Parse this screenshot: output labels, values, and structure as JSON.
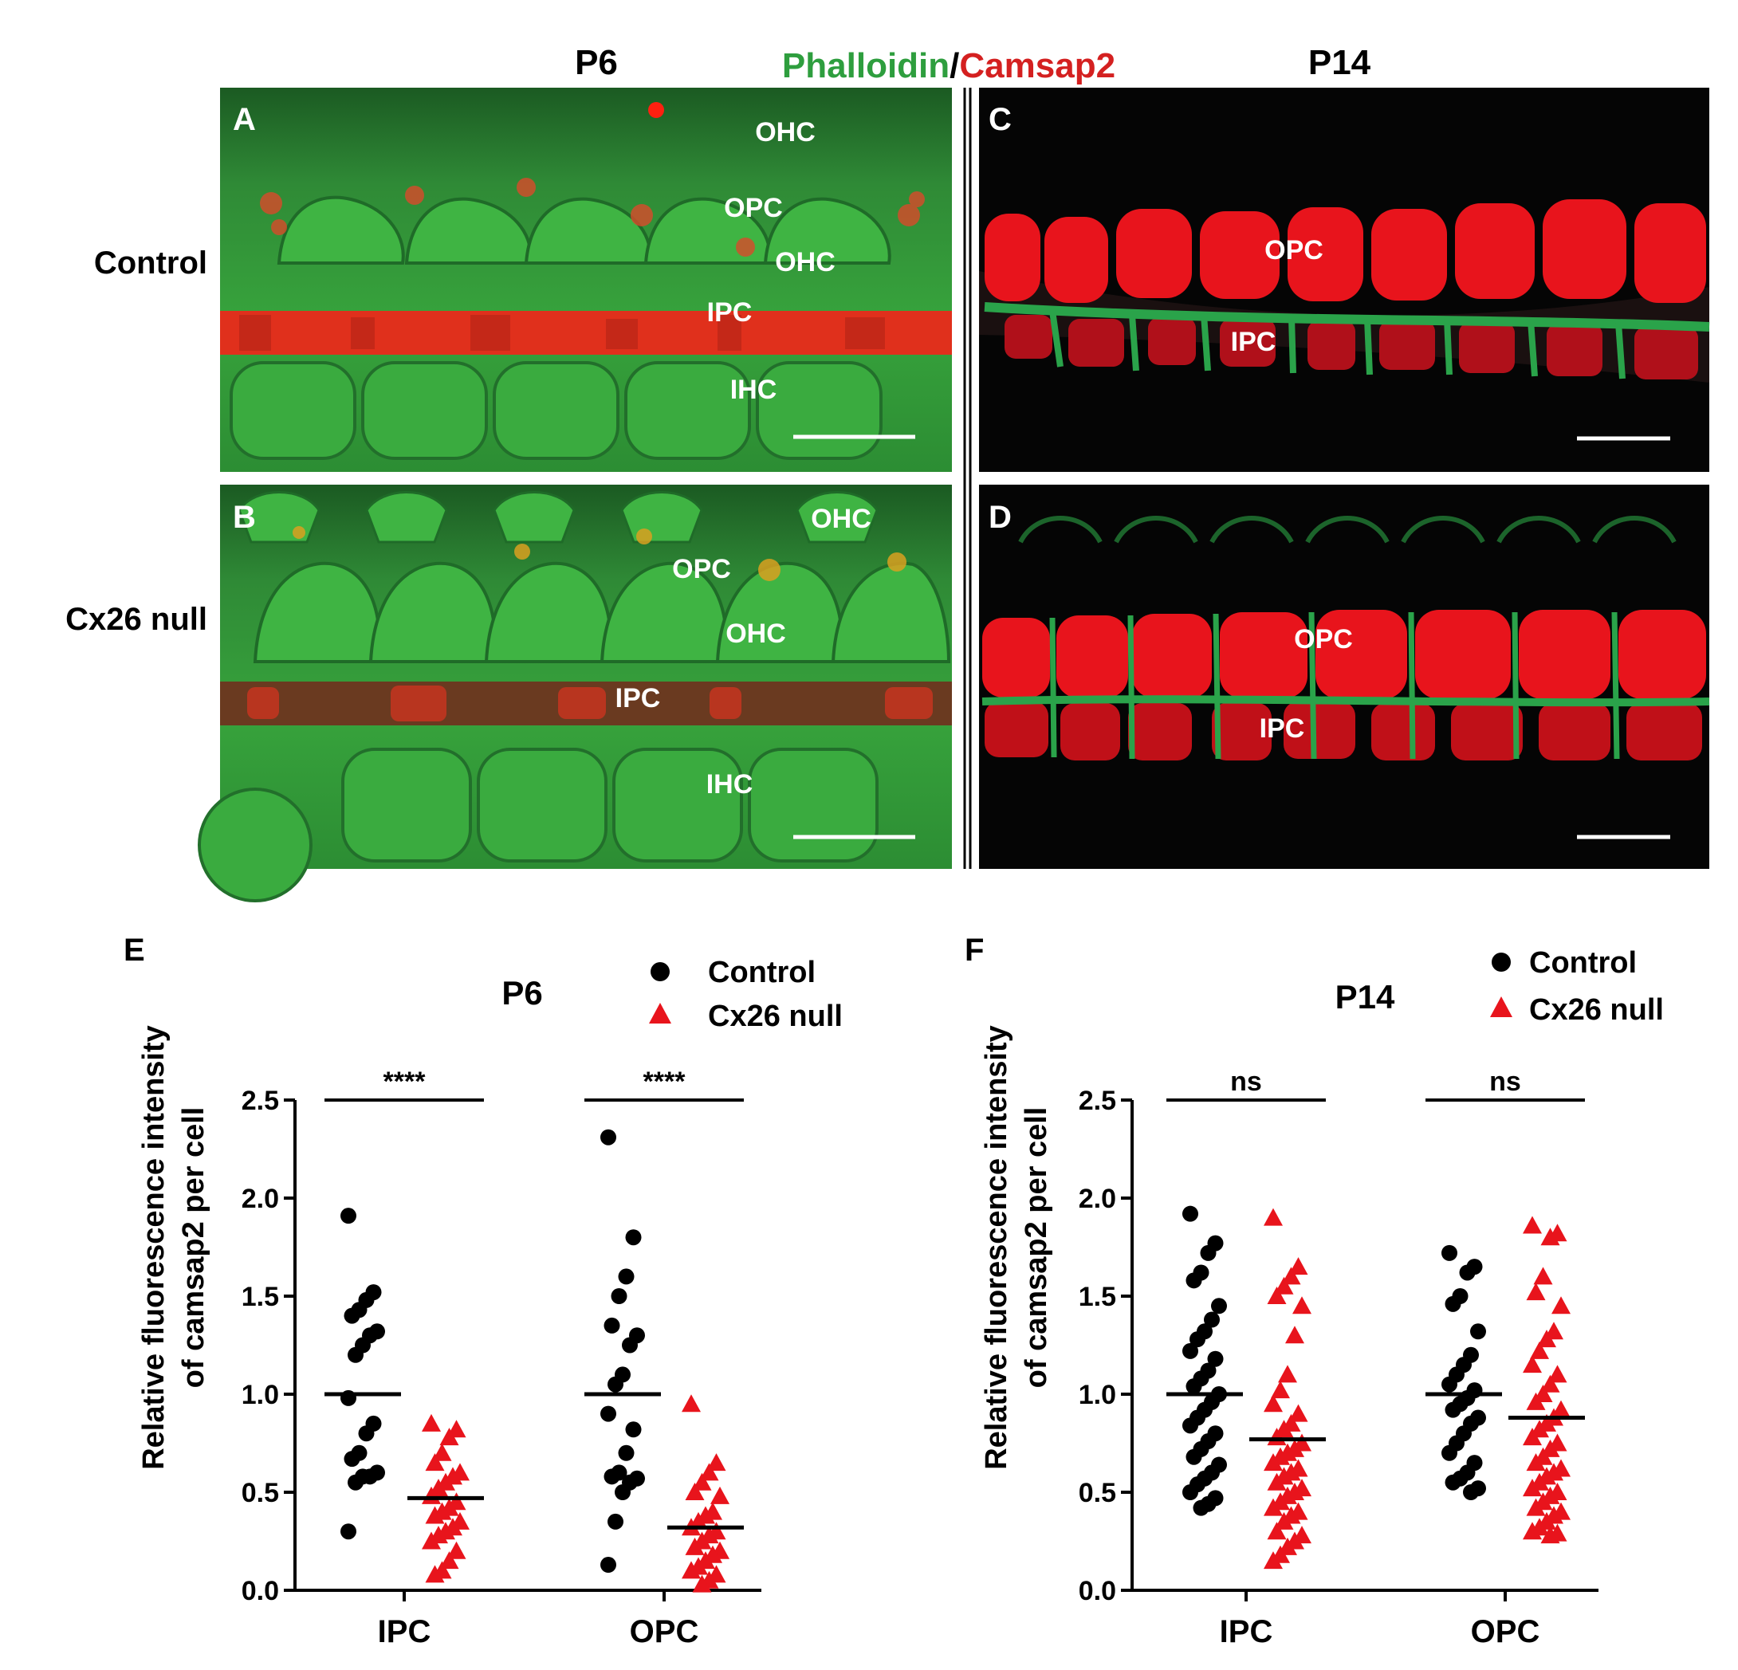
{
  "header": {
    "left_stage": "P6",
    "right_stage": "P14",
    "stain_a": "Phalloidin",
    "stain_sep": "/",
    "stain_b": "Camsap2",
    "stain_a_color": "#2e9e3e",
    "stain_b_color": "#d42020"
  },
  "rows": {
    "top": "Control",
    "bottom": "Cx26 null"
  },
  "micrographs": [
    {
      "letter": "A",
      "bg": "green",
      "labels": [
        "OHC",
        "OPC",
        "OHC",
        "IPC",
        "IHC"
      ]
    },
    {
      "letter": "B",
      "bg": "green",
      "labels": [
        "OHC",
        "OPC",
        "OHC",
        "IPC",
        "IHC"
      ]
    },
    {
      "letter": "C",
      "bg": "black",
      "labels": [
        "OPC",
        "IPC"
      ]
    },
    {
      "letter": "D",
      "bg": "black",
      "labels": [
        "OPC",
        "IPC"
      ]
    }
  ],
  "chart_data": [
    {
      "panel": "E",
      "type": "scatter",
      "title": "P6",
      "ylabel_line1": "Relative fluorescence intensity",
      "ylabel_line2": "of camsap2 per cell",
      "ylim": [
        0,
        2.5
      ],
      "yticks": [
        "0.0",
        "0.5",
        "1.0",
        "1.5",
        "2.0",
        "2.5"
      ],
      "categories": [
        "IPC",
        "OPC"
      ],
      "legend": [
        {
          "name": "Control",
          "marker": "circle",
          "color": "#000000"
        },
        {
          "name": "Cx26 null",
          "marker": "triangle",
          "color": "#e8141c"
        }
      ],
      "significance": [
        "****",
        "****"
      ],
      "series": [
        {
          "name": "Control",
          "means": [
            1.0,
            1.0
          ],
          "values": [
            [
              1.91,
              1.52,
              1.48,
              1.43,
              1.4,
              1.32,
              1.3,
              1.25,
              1.2,
              0.98,
              0.85,
              0.8,
              0.7,
              0.67,
              0.6,
              0.58,
              0.58,
              0.55,
              0.3
            ],
            [
              2.31,
              1.8,
              1.6,
              1.5,
              1.35,
              1.3,
              1.25,
              1.1,
              1.05,
              0.9,
              0.82,
              0.7,
              0.6,
              0.58,
              0.57,
              0.55,
              0.5,
              0.35,
              0.13
            ]
          ]
        },
        {
          "name": "Cx26 null",
          "means": [
            0.47,
            0.32
          ],
          "values": [
            [
              0.85,
              0.82,
              0.78,
              0.7,
              0.65,
              0.6,
              0.58,
              0.55,
              0.52,
              0.48,
              0.45,
              0.42,
              0.4,
              0.38,
              0.35,
              0.32,
              0.3,
              0.28,
              0.25,
              0.2,
              0.15,
              0.1,
              0.08
            ],
            [
              0.95,
              0.65,
              0.6,
              0.55,
              0.5,
              0.48,
              0.4,
              0.38,
              0.35,
              0.32,
              0.3,
              0.28,
              0.25,
              0.22,
              0.2,
              0.18,
              0.15,
              0.12,
              0.1,
              0.08,
              0.05,
              0.03
            ]
          ]
        }
      ]
    },
    {
      "panel": "F",
      "type": "scatter",
      "title": "P14",
      "ylabel_line1": "Relative fluorescence intensity",
      "ylabel_line2": "of camsap2 per cell",
      "ylim": [
        0,
        2.5
      ],
      "yticks": [
        "0.0",
        "0.5",
        "1.0",
        "1.5",
        "2.0",
        "2.5"
      ],
      "categories": [
        "IPC",
        "OPC"
      ],
      "legend": [
        {
          "name": "Control",
          "marker": "circle",
          "color": "#000000"
        },
        {
          "name": "Cx26 null",
          "marker": "triangle",
          "color": "#e8141c"
        }
      ],
      "significance": [
        "ns",
        "ns"
      ],
      "series": [
        {
          "name": "Control",
          "means": [
            1.0,
            1.0
          ],
          "values": [
            [
              1.92,
              1.77,
              1.72,
              1.62,
              1.58,
              1.45,
              1.38,
              1.32,
              1.28,
              1.22,
              1.18,
              1.12,
              1.08,
              1.04,
              1.0,
              0.96,
              0.92,
              0.88,
              0.84,
              0.8,
              0.76,
              0.72,
              0.68,
              0.64,
              0.6,
              0.57,
              0.54,
              0.5,
              0.47,
              0.44,
              0.42
            ],
            [
              1.72,
              1.65,
              1.62,
              1.5,
              1.46,
              1.32,
              1.2,
              1.15,
              1.1,
              1.05,
              1.02,
              0.98,
              0.95,
              0.92,
              0.88,
              0.85,
              0.8,
              0.75,
              0.7,
              0.65,
              0.6,
              0.57,
              0.55,
              0.52,
              0.5
            ]
          ]
        },
        {
          "name": "Cx26 null",
          "means": [
            0.77,
            0.88
          ],
          "values": [
            [
              1.9,
              1.65,
              1.6,
              1.55,
              1.5,
              1.45,
              1.3,
              1.1,
              1.02,
              0.95,
              0.9,
              0.85,
              0.82,
              0.78,
              0.75,
              0.72,
              0.7,
              0.68,
              0.65,
              0.62,
              0.6,
              0.58,
              0.55,
              0.52,
              0.5,
              0.48,
              0.45,
              0.42,
              0.4,
              0.38,
              0.35,
              0.3,
              0.28,
              0.25,
              0.22,
              0.18,
              0.15
            ],
            [
              1.86,
              1.82,
              1.8,
              1.6,
              1.52,
              1.45,
              1.32,
              1.28,
              1.22,
              1.15,
              1.1,
              1.05,
              1.0,
              0.96,
              0.92,
              0.88,
              0.85,
              0.82,
              0.78,
              0.75,
              0.72,
              0.68,
              0.65,
              0.62,
              0.6,
              0.58,
              0.55,
              0.52,
              0.5,
              0.48,
              0.45,
              0.42,
              0.4,
              0.38,
              0.35,
              0.32,
              0.3,
              0.29,
              0.28
            ]
          ]
        }
      ]
    }
  ]
}
